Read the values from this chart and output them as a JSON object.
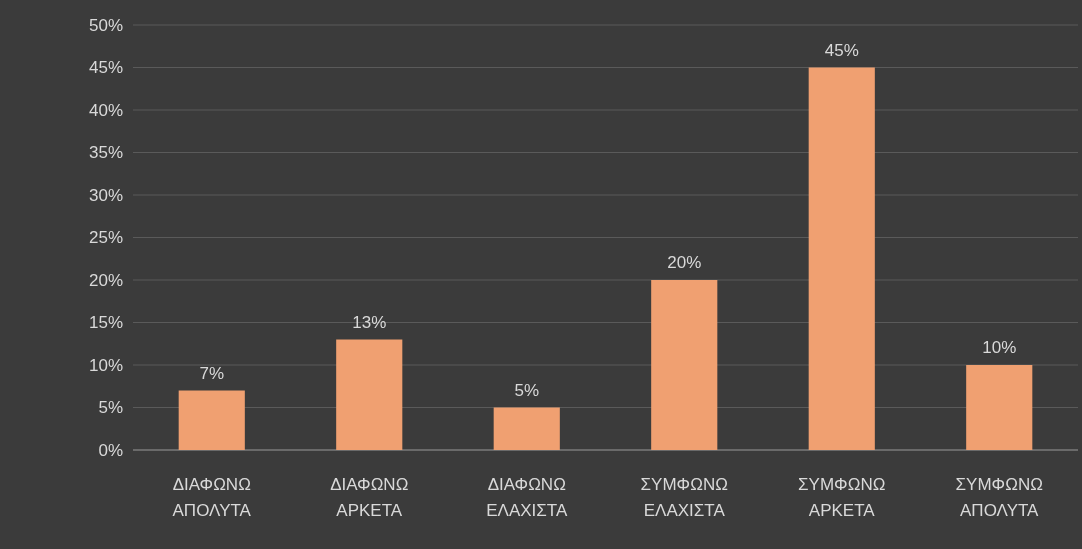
{
  "chart_data": {
    "type": "bar",
    "categories": [
      "ΔΙΑΦΩΝΩ ΑΠΟΛΥΤΑ",
      "ΔΙΑΦΩΝΩ ΑΡΚΕΤΑ",
      "ΔΙΑΦΩΝΩ ΕΛΑΧΙΣΤΑ",
      "ΣΥΜΦΩΝΩ ΕΛΑΧΙΣΤΑ",
      "ΣΥΜΦΩΝΩ ΑΡΚΕΤΑ",
      "ΣΥΜΦΩΝΩ ΑΠΟΛΥΤΑ"
    ],
    "values": [
      7,
      13,
      5,
      20,
      45,
      10
    ],
    "value_labels": [
      "7%",
      "13%",
      "5%",
      "20%",
      "45%",
      "10%"
    ],
    "color": "#f0a071",
    "ylim": [
      0,
      50
    ],
    "yticks": [
      {
        "value": 0,
        "label": "0%"
      },
      {
        "value": 5,
        "label": "5%"
      },
      {
        "value": 10,
        "label": "10%"
      },
      {
        "value": 15,
        "label": "15%"
      },
      {
        "value": 20,
        "label": "20%"
      },
      {
        "value": 25,
        "label": "25%"
      },
      {
        "value": 30,
        "label": "30%"
      },
      {
        "value": 35,
        "label": "35%"
      },
      {
        "value": 40,
        "label": "40%"
      },
      {
        "value": 45,
        "label": "45%"
      },
      {
        "value": 50,
        "label": "50%"
      }
    ],
    "grid": true
  }
}
